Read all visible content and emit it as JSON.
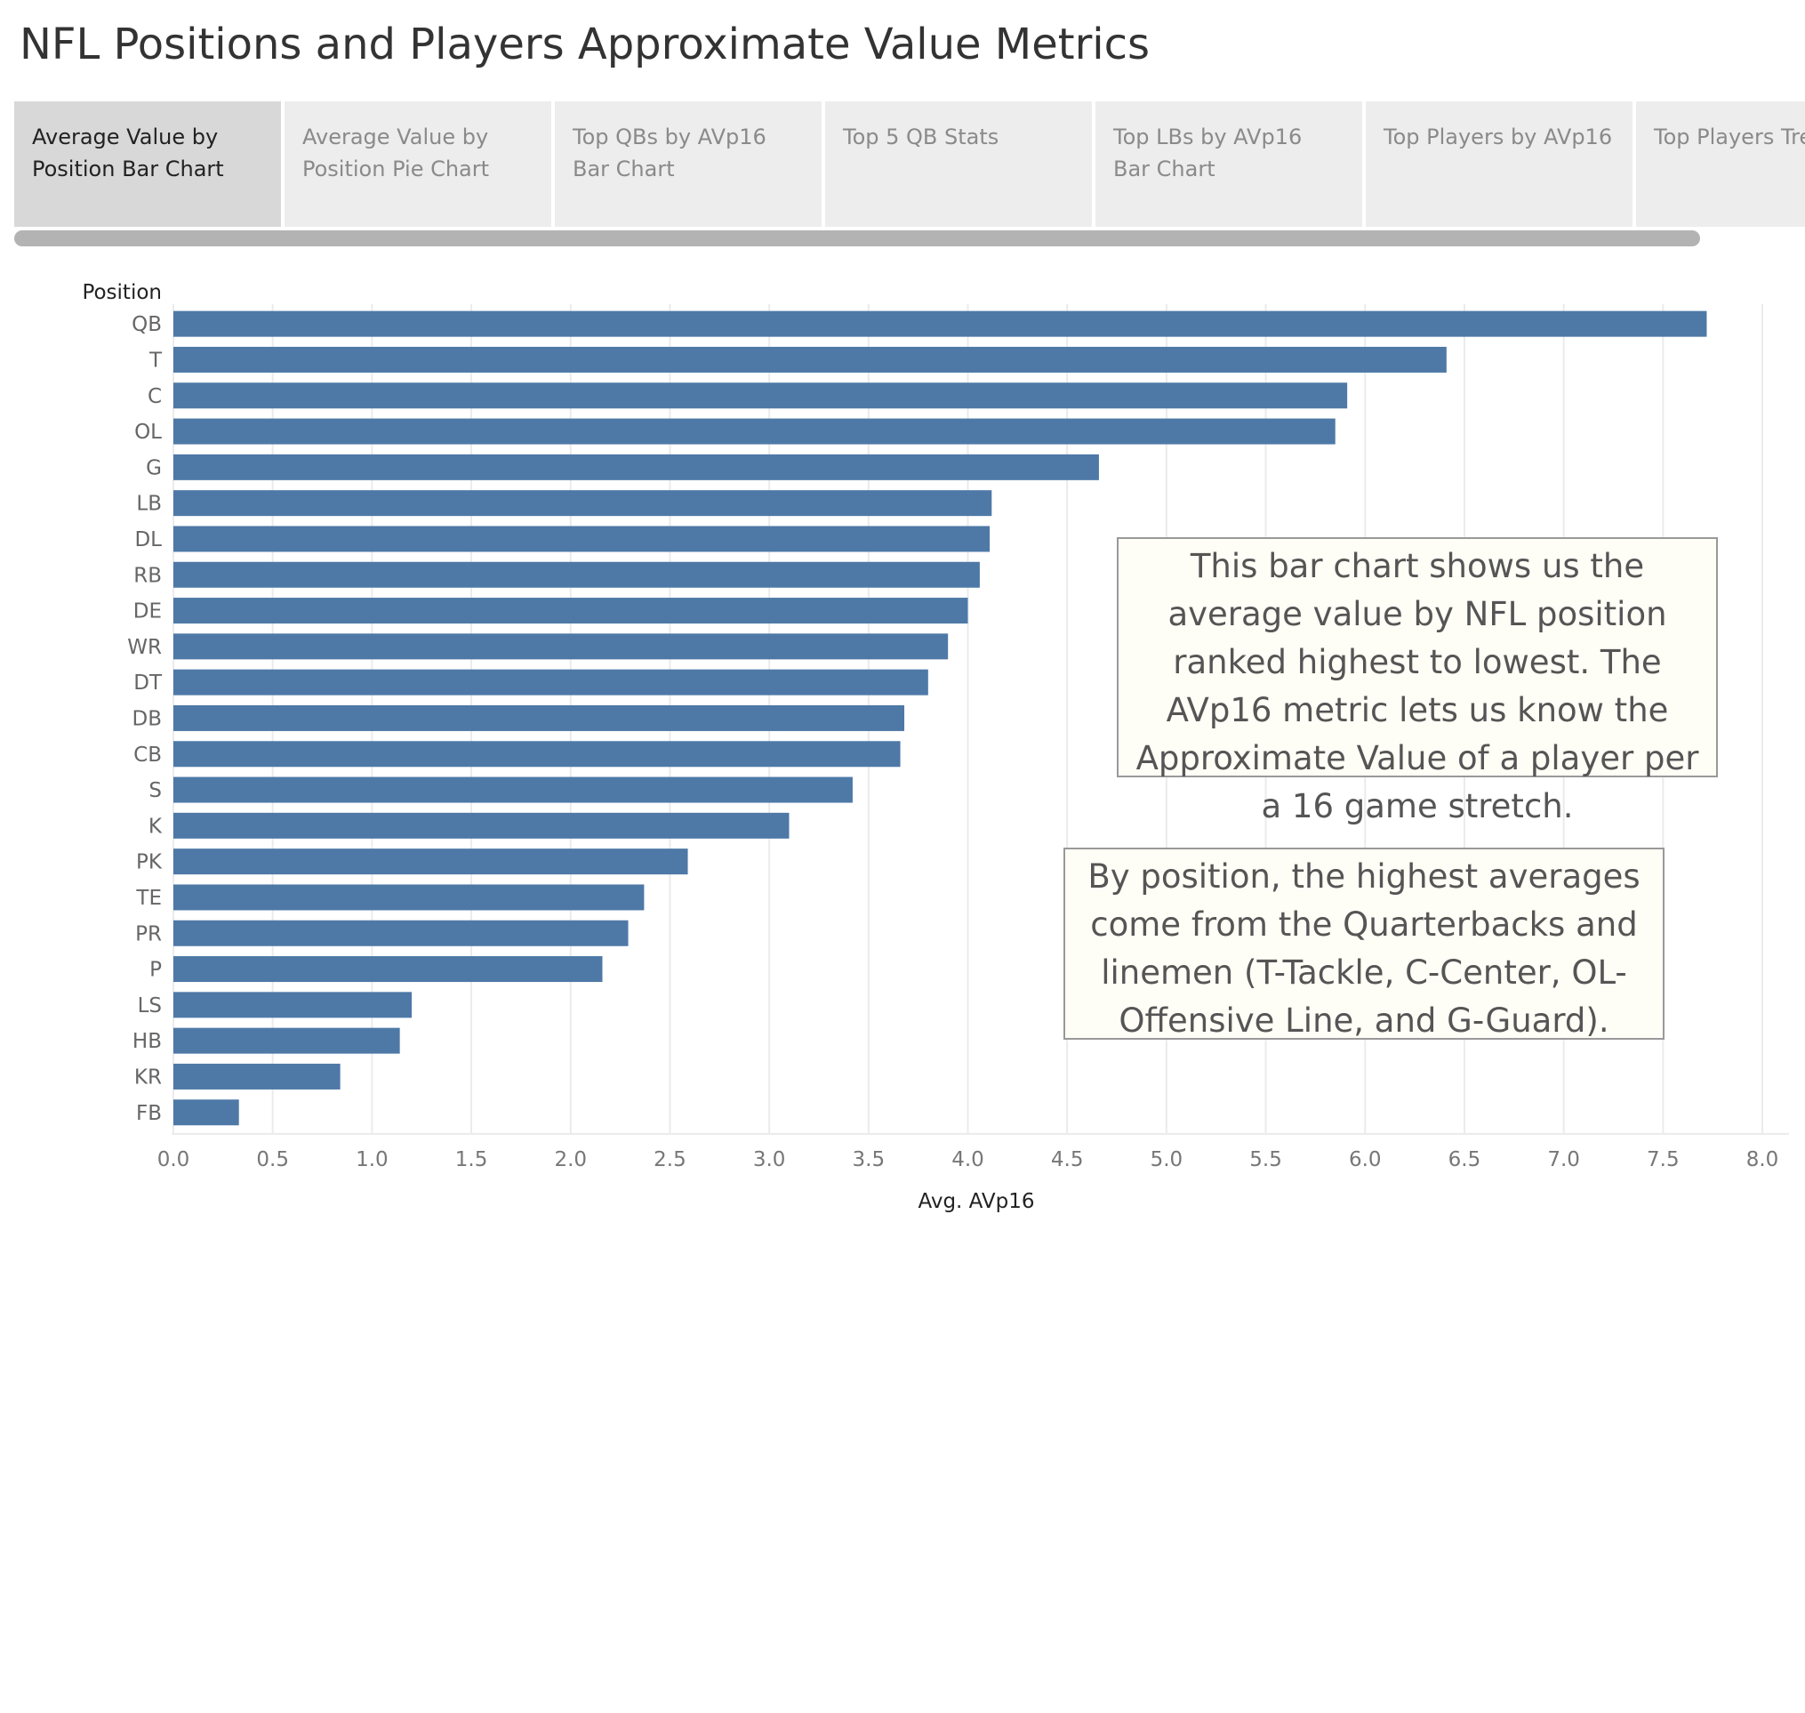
{
  "title": "NFL Positions and Players Approximate Value Metrics",
  "tabs": [
    {
      "label": "Average Value by Position Bar Chart",
      "active": true
    },
    {
      "label": "Average Value by Position Pie Chart",
      "active": false
    },
    {
      "label": "Top QBs by AVp16 Bar Chart",
      "active": false
    },
    {
      "label": "Top 5 QB Stats",
      "active": false
    },
    {
      "label": "Top LBs by AVp16 Bar Chart",
      "active": false
    },
    {
      "label": "Top Players by AVp16",
      "active": false
    },
    {
      "label": "Top Players Treemap",
      "active": false
    }
  ],
  "colors": {
    "bar": "#4e79a7",
    "grid": "#ebebeb",
    "tab_active": "#d8d8d8",
    "tab": "#ededed",
    "note_bg": "#fefdf6"
  },
  "chart_data": {
    "type": "bar",
    "orientation": "horizontal",
    "ylabel": "Position",
    "xlabel": "Avg. AVp16",
    "xlim": [
      0,
      8
    ],
    "x_ticks": [
      "0.0",
      "0.5",
      "1.0",
      "1.5",
      "2.0",
      "2.5",
      "3.0",
      "3.5",
      "4.0",
      "4.5",
      "5.0",
      "5.5",
      "6.0",
      "6.5",
      "7.0",
      "7.5",
      "8.0"
    ],
    "grid": true,
    "categories": [
      "QB",
      "T",
      "C",
      "OL",
      "G",
      "LB",
      "DL",
      "RB",
      "DE",
      "WR",
      "DT",
      "DB",
      "CB",
      "S",
      "K",
      "PK",
      "TE",
      "PR",
      "P",
      "LS",
      "HB",
      "KR",
      "FB"
    ],
    "values": [
      7.72,
      6.41,
      5.91,
      5.85,
      4.66,
      4.12,
      4.11,
      4.06,
      4.0,
      3.9,
      3.8,
      3.68,
      3.66,
      3.42,
      3.1,
      2.59,
      2.37,
      2.29,
      2.16,
      1.2,
      1.14,
      0.84,
      0.33
    ]
  },
  "annotations": [
    "This bar chart shows us the average value by NFL position ranked highest to lowest.  The AVp16 metric lets us know the Approximate Value of a player per a 16 game stretch.",
    "By position, the highest averages come from the Quarterbacks and linemen (T-Tackle, C-Center, OL-Offensive Line, and G-Guard)."
  ]
}
